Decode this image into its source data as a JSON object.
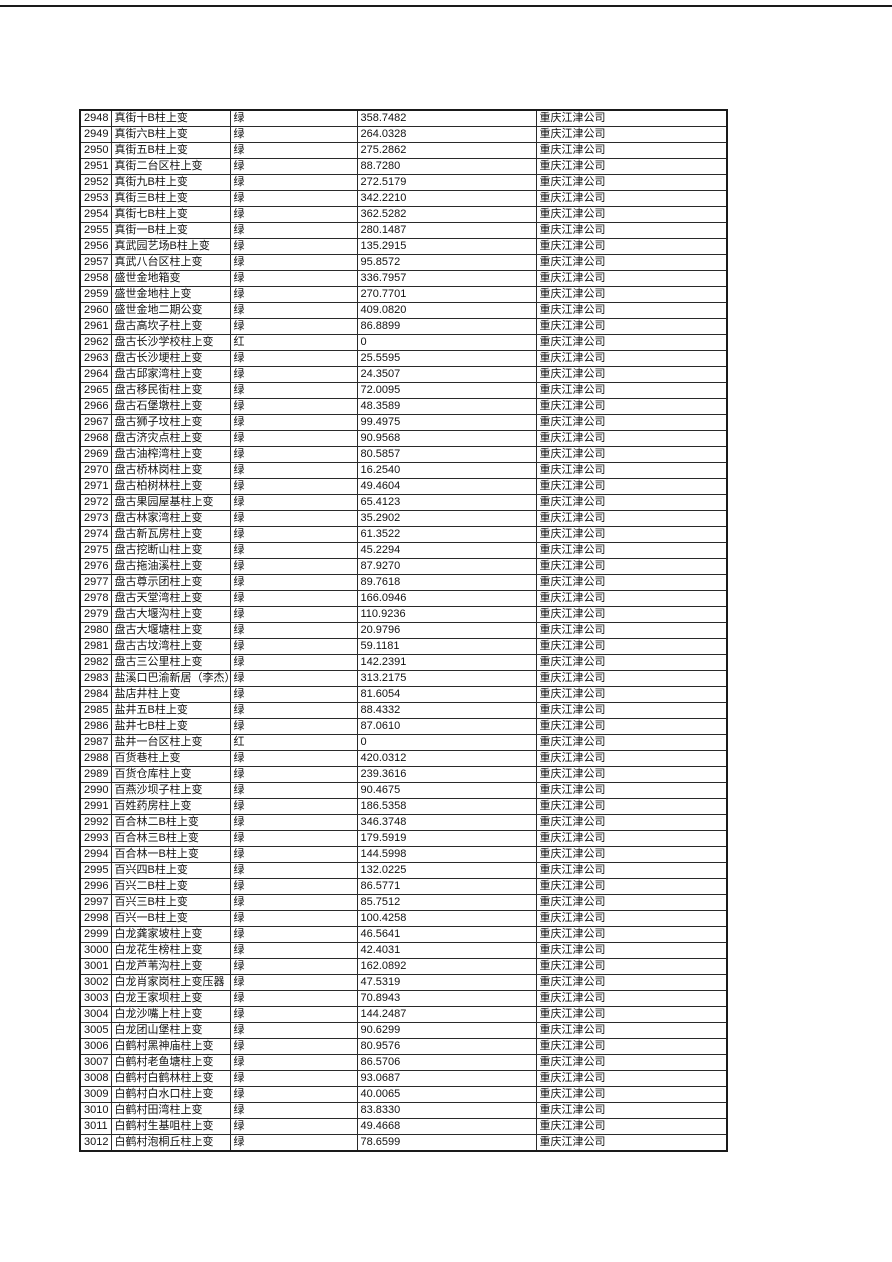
{
  "page": {
    "background": "#ffffff",
    "top_rule_color": "#1a1a1a",
    "table_border_color": "#222222"
  },
  "table": {
    "columns": [
      "row_id",
      "name",
      "status",
      "value",
      "company"
    ],
    "cell_names": [
      "cell-row-id",
      "cell-name",
      "cell-status",
      "cell-value",
      "cell-company"
    ],
    "rows": [
      [
        "2948",
        "真街十B柱上变",
        "绿",
        "358.7482",
        "重庆江津公司"
      ],
      [
        "2949",
        "真街六B柱上变",
        "绿",
        "264.0328",
        "重庆江津公司"
      ],
      [
        "2950",
        "真街五B柱上变",
        "绿",
        "275.2862",
        "重庆江津公司"
      ],
      [
        "2951",
        "真街二台区柱上变",
        "绿",
        "88.7280",
        "重庆江津公司"
      ],
      [
        "2952",
        "真街九B柱上变",
        "绿",
        "272.5179",
        "重庆江津公司"
      ],
      [
        "2953",
        "真街三B柱上变",
        "绿",
        "342.2210",
        "重庆江津公司"
      ],
      [
        "2954",
        "真街七B柱上变",
        "绿",
        "362.5282",
        "重庆江津公司"
      ],
      [
        "2955",
        "真街一B柱上变",
        "绿",
        "280.1487",
        "重庆江津公司"
      ],
      [
        "2956",
        "真武园艺场B柱上变",
        "绿",
        "135.2915",
        "重庆江津公司"
      ],
      [
        "2957",
        "真武八台区柱上变",
        "绿",
        "95.8572",
        "重庆江津公司"
      ],
      [
        "2958",
        "盛世金地箱变",
        "绿",
        "336.7957",
        "重庆江津公司"
      ],
      [
        "2959",
        "盛世金地柱上变",
        "绿",
        "270.7701",
        "重庆江津公司"
      ],
      [
        "2960",
        "盛世金地二期公变",
        "绿",
        "409.0820",
        "重庆江津公司"
      ],
      [
        "2961",
        "盘古高坎子柱上变",
        "绿",
        "86.8899",
        "重庆江津公司"
      ],
      [
        "2962",
        "盘古长沙学校柱上变",
        "红",
        "0",
        "重庆江津公司"
      ],
      [
        "2963",
        "盘古长沙埂柱上变",
        "绿",
        "25.5595",
        "重庆江津公司"
      ],
      [
        "2964",
        "盘古邱家湾柱上变",
        "绿",
        "24.3507",
        "重庆江津公司"
      ],
      [
        "2965",
        "盘古移民街柱上变",
        "绿",
        "72.0095",
        "重庆江津公司"
      ],
      [
        "2966",
        "盘古石堡墩柱上变",
        "绿",
        "48.3589",
        "重庆江津公司"
      ],
      [
        "2967",
        "盘古狮子坟柱上变",
        "绿",
        "99.4975",
        "重庆江津公司"
      ],
      [
        "2968",
        "盘古济灾点柱上变",
        "绿",
        "90.9568",
        "重庆江津公司"
      ],
      [
        "2969",
        "盘古油榨湾柱上变",
        "绿",
        "80.5857",
        "重庆江津公司"
      ],
      [
        "2970",
        "盘古桥林岗柱上变",
        "绿",
        "16.2540",
        "重庆江津公司"
      ],
      [
        "2971",
        "盘古柏树林柱上变",
        "绿",
        "49.4604",
        "重庆江津公司"
      ],
      [
        "2972",
        "盘古果园屋基柱上变",
        "绿",
        "65.4123",
        "重庆江津公司"
      ],
      [
        "2973",
        "盘古林家湾柱上变",
        "绿",
        "35.2902",
        "重庆江津公司"
      ],
      [
        "2974",
        "盘古新瓦房柱上变",
        "绿",
        "61.3522",
        "重庆江津公司"
      ],
      [
        "2975",
        "盘古挖断山柱上变",
        "绿",
        "45.2294",
        "重庆江津公司"
      ],
      [
        "2976",
        "盘古拖油溪柱上变",
        "绿",
        "87.9270",
        "重庆江津公司"
      ],
      [
        "2977",
        "盘古尊示团柱上变",
        "绿",
        "89.7618",
        "重庆江津公司"
      ],
      [
        "2978",
        "盘古天堂湾柱上变",
        "绿",
        "166.0946",
        "重庆江津公司"
      ],
      [
        "2979",
        "盘古大堰沟柱上变",
        "绿",
        "110.9236",
        "重庆江津公司"
      ],
      [
        "2980",
        "盘古大堰塘柱上变",
        "绿",
        "20.9796",
        "重庆江津公司"
      ],
      [
        "2981",
        "盘古古坟湾柱上变",
        "绿",
        "59.1181",
        "重庆江津公司"
      ],
      [
        "2982",
        "盘古三公里柱上变",
        "绿",
        "142.2391",
        "重庆江津公司"
      ],
      [
        "2983",
        "盐溪口巴渝新居（李杰）柱上变",
        "绿",
        "313.2175",
        "重庆江津公司"
      ],
      [
        "2984",
        "盐店井柱上变",
        "绿",
        "81.6054",
        "重庆江津公司"
      ],
      [
        "2985",
        "盐井五B柱上变",
        "绿",
        "88.4332",
        "重庆江津公司"
      ],
      [
        "2986",
        "盐井七B柱上变",
        "绿",
        "87.0610",
        "重庆江津公司"
      ],
      [
        "2987",
        "盐井一台区柱上变",
        "红",
        "0",
        "重庆江津公司"
      ],
      [
        "2988",
        "百货巷柱上变",
        "绿",
        "420.0312",
        "重庆江津公司"
      ],
      [
        "2989",
        "百货仓库柱上变",
        "绿",
        "239.3616",
        "重庆江津公司"
      ],
      [
        "2990",
        "百燕沙坝子柱上变",
        "绿",
        "90.4675",
        "重庆江津公司"
      ],
      [
        "2991",
        "百姓药房柱上变",
        "绿",
        "186.5358",
        "重庆江津公司"
      ],
      [
        "2992",
        "百合林二B柱上变",
        "绿",
        "346.3748",
        "重庆江津公司"
      ],
      [
        "2993",
        "百合林三B柱上变",
        "绿",
        "179.5919",
        "重庆江津公司"
      ],
      [
        "2994",
        "百合林一B柱上变",
        "绿",
        "144.5998",
        "重庆江津公司"
      ],
      [
        "2995",
        "百兴四B柱上变",
        "绿",
        "132.0225",
        "重庆江津公司"
      ],
      [
        "2996",
        "百兴二B柱上变",
        "绿",
        "86.5771",
        "重庆江津公司"
      ],
      [
        "2997",
        "百兴三B柱上变",
        "绿",
        "85.7512",
        "重庆江津公司"
      ],
      [
        "2998",
        "百兴一B柱上变",
        "绿",
        "100.4258",
        "重庆江津公司"
      ],
      [
        "2999",
        "白龙龚家坡柱上变",
        "绿",
        "46.5641",
        "重庆江津公司"
      ],
      [
        "3000",
        "白龙花生榜柱上变",
        "绿",
        "42.4031",
        "重庆江津公司"
      ],
      [
        "3001",
        "白龙芦苇沟柱上变",
        "绿",
        "162.0892",
        "重庆江津公司"
      ],
      [
        "3002",
        "白龙肖家岗柱上变压器",
        "绿",
        "47.5319",
        "重庆江津公司"
      ],
      [
        "3003",
        "白龙王家坝柱上变",
        "绿",
        "70.8943",
        "重庆江津公司"
      ],
      [
        "3004",
        "白龙沙嘴上柱上变",
        "绿",
        "144.2487",
        "重庆江津公司"
      ],
      [
        "3005",
        "白龙团山堡柱上变",
        "绿",
        "90.6299",
        "重庆江津公司"
      ],
      [
        "3006",
        "白鹤村黑神庙柱上变",
        "绿",
        "80.9576",
        "重庆江津公司"
      ],
      [
        "3007",
        "白鹤村老鱼塘柱上变",
        "绿",
        "86.5706",
        "重庆江津公司"
      ],
      [
        "3008",
        "白鹤村白鹤林柱上变",
        "绿",
        "93.0687",
        "重庆江津公司"
      ],
      [
        "3009",
        "白鹤村白水口柱上变",
        "绿",
        "40.0065",
        "重庆江津公司"
      ],
      [
        "3010",
        "白鹤村田湾柱上变",
        "绿",
        "83.8330",
        "重庆江津公司"
      ],
      [
        "3011",
        "白鹤村生基咀柱上变",
        "绿",
        "49.4668",
        "重庆江津公司"
      ],
      [
        "3012",
        "白鹤村泡桐丘柱上变",
        "绿",
        "78.6599",
        "重庆江津公司"
      ]
    ]
  }
}
